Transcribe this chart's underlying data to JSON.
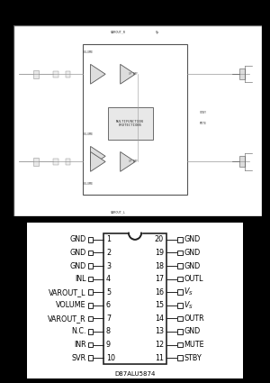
{
  "left_pins": [
    {
      "num": 1,
      "label": "GND"
    },
    {
      "num": 2,
      "label": "GND"
    },
    {
      "num": 3,
      "label": "GND"
    },
    {
      "num": 4,
      "label": "INL"
    },
    {
      "num": 5,
      "label": "VAROUT_L"
    },
    {
      "num": 6,
      "label": "VOLUME"
    },
    {
      "num": 7,
      "label": "VAROUT_R"
    },
    {
      "num": 8,
      "label": "N.C."
    },
    {
      "num": 9,
      "label": "INR"
    },
    {
      "num": 10,
      "label": "SVR"
    }
  ],
  "right_pins": [
    {
      "num": 20,
      "label": "GND"
    },
    {
      "num": 19,
      "label": "GND"
    },
    {
      "num": 18,
      "label": "GND"
    },
    {
      "num": 17,
      "label": "OUTL"
    },
    {
      "num": 16,
      "label": "V_S"
    },
    {
      "num": 15,
      "label": "V_S"
    },
    {
      "num": 14,
      "label": "OUTR"
    },
    {
      "num": 13,
      "label": "GND"
    },
    {
      "num": 12,
      "label": "MUTE"
    },
    {
      "num": 11,
      "label": "STBY"
    }
  ],
  "chip_label": "D87ALU5874",
  "page_bg": "#000000",
  "white_bg": "#ffffff",
  "box_color": "#222222",
  "light_gray": "#cccccc",
  "mid_gray": "#999999",
  "dark_gray": "#555555",
  "pin_font_size": 5.8,
  "circuit_bg": "#f5f5f5",
  "circuit_border": "#888888"
}
